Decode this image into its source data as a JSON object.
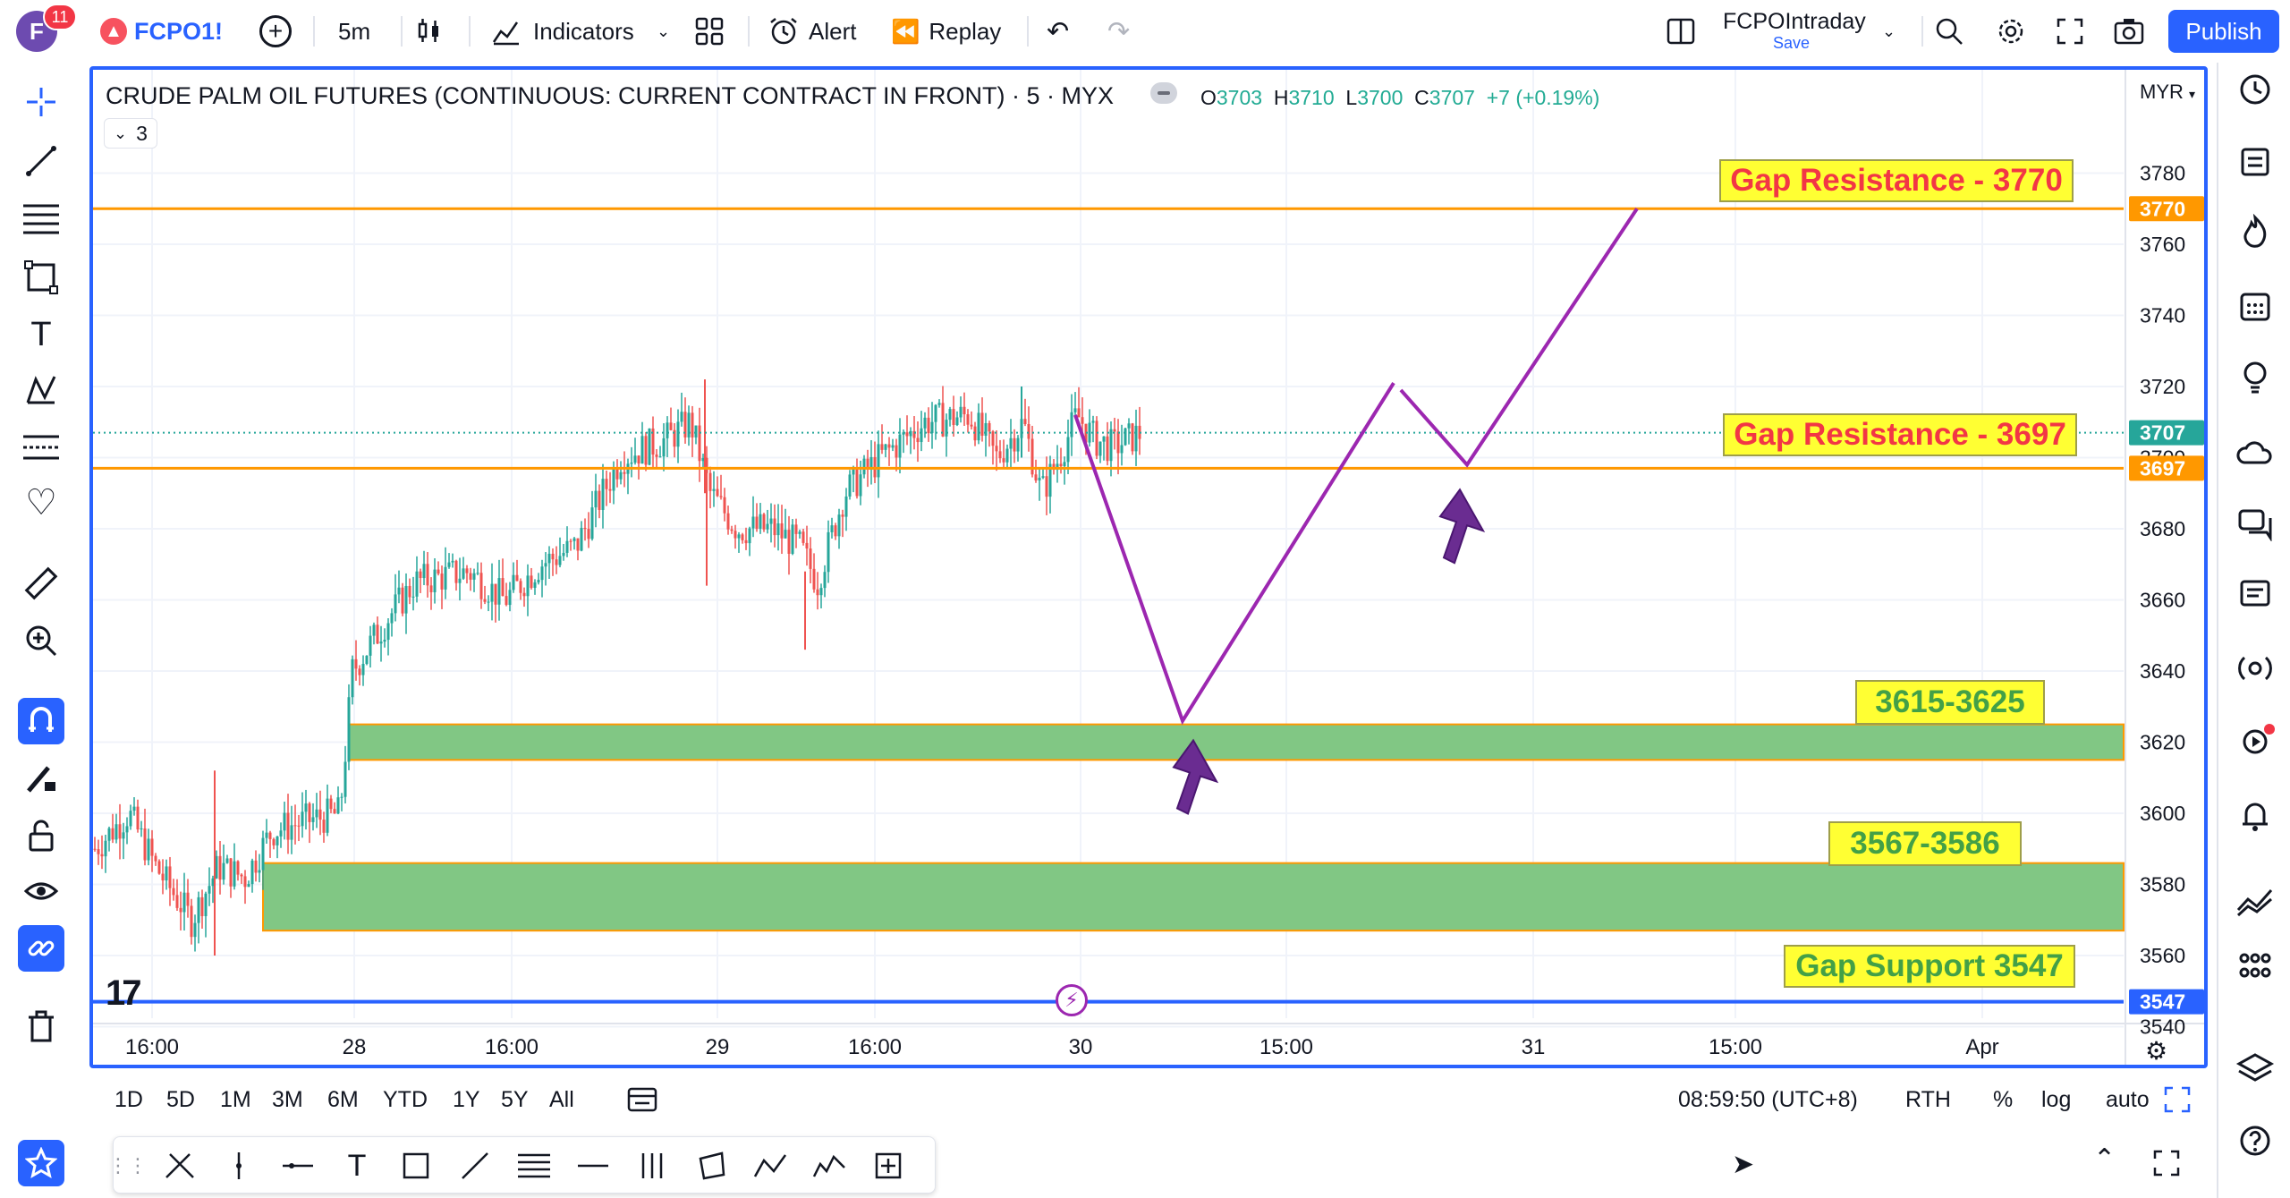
{
  "topbar": {
    "avatar_letter": "F",
    "notification_count": "11",
    "symbol": "FCPO1!",
    "interval": "5m",
    "indicators_label": "Indicators",
    "alert_label": "Alert",
    "replay_label": "Replay",
    "layout_name": "FCPOIntraday",
    "layout_save": "Save",
    "publish_label": "Publish"
  },
  "legend": {
    "title": "CRUDE PALM OIL FUTURES (CONTINUOUS: CURRENT CONTRACT IN FRONT) · 5 · MYX",
    "open_label": "O",
    "open": "3703",
    "high_label": "H",
    "high": "3710",
    "low_label": "L",
    "low": "3700",
    "close_label": "C",
    "close": "3707",
    "change": "+7 (+0.19%)",
    "indicator_count": "3",
    "currency": "MYR"
  },
  "price_axis": {
    "ticks": [
      "3780",
      "3760",
      "3740",
      "3720",
      "3700",
      "3680",
      "3660",
      "3640",
      "3620",
      "3600",
      "3580",
      "3560",
      "3540"
    ],
    "badges": [
      {
        "value": "3770",
        "color": "#ff9800"
      },
      {
        "value": "3707",
        "color": "#26a69a"
      },
      {
        "value": "3697",
        "color": "#ff9800"
      },
      {
        "value": "3547",
        "color": "#2962ff"
      }
    ]
  },
  "time_axis": {
    "labels": [
      "16:00",
      "28",
      "16:00",
      "29",
      "16:00",
      "30",
      "15:00",
      "31",
      "15:00",
      "Apr"
    ]
  },
  "annotations": {
    "gap_resistance_high": "Gap Resistance - 3770",
    "gap_resistance_low": "Gap Resistance - 3697",
    "zone_upper": "3615-3625",
    "zone_lower": "3567-3586",
    "gap_support": "Gap Support 3547"
  },
  "colors": {
    "up": "#26a69a",
    "down": "#ef5350",
    "resistance": "#ff9800",
    "support": "#2962ff",
    "zone": "#81c784",
    "projection": "#9c27b0",
    "label_bg": "#ffff33",
    "label_red": "#f23645",
    "label_green": "#43a047"
  },
  "bottom_bar": {
    "ranges": [
      "1D",
      "5D",
      "1M",
      "3M",
      "6M",
      "YTD",
      "1Y",
      "5Y",
      "All"
    ],
    "time": "08:59:50 (UTC+8)",
    "session": "RTH",
    "percent": "%",
    "log": "log",
    "auto": "auto"
  },
  "icons": {
    "left_toolbar": [
      "crosshair-icon",
      "trendline-icon",
      "fib-icon",
      "rectangle-icon",
      "text-icon",
      "pattern-icon",
      "prediction-icon",
      "heart-icon",
      "ruler-icon",
      "zoom-icon",
      "magnet-icon",
      "pencil-lock-icon",
      "lock-icon",
      "eye-icon",
      "link-icon",
      "trash-icon",
      "star-icon"
    ],
    "right_sidebar": [
      "clock-icon",
      "watchlist-icon",
      "hotlist-icon",
      "calendar-icon",
      "idea-icon",
      "cloud-icon",
      "chat-icon",
      "notes-icon",
      "signal-icon",
      "stream-icon",
      "bell-icon",
      "trend-icon",
      "dots-icon",
      "layers-icon",
      "help-icon"
    ]
  }
}
